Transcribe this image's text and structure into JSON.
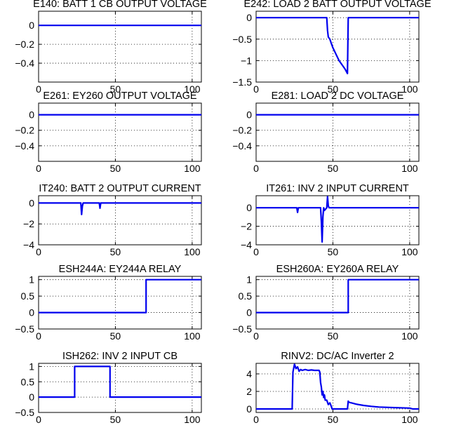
{
  "colors": {
    "series": "#0000ee",
    "axes": "#000000",
    "background": "#ffffff"
  },
  "chart_data": [
    {
      "type": "line",
      "title": "E140: BATT 1 CB OUTPUT VOLTAGE",
      "xlim": [
        0,
        106
      ],
      "ylim": [
        -0.6,
        0.15
      ],
      "xticks": [
        0,
        50,
        100
      ],
      "xtick_labels": [
        "0",
        "50",
        "100"
      ],
      "yticks": [
        0,
        -0.2,
        -0.4
      ],
      "ytick_labels": [
        "0",
        "−0.2",
        "−0.4"
      ],
      "grid": true,
      "x": [
        0,
        106
      ],
      "y": [
        0,
        0
      ]
    },
    {
      "type": "line",
      "title": "E242: LOAD 2 BATT OUTPUT VOLTAGE",
      "xlim": [
        0,
        106
      ],
      "ylim": [
        -1.5,
        0.15
      ],
      "xticks": [
        0,
        50,
        100
      ],
      "xtick_labels": [
        "0",
        "50",
        "100"
      ],
      "yticks": [
        0,
        -0.5,
        -1,
        -1.5
      ],
      "ytick_labels": [
        "0",
        "−0.5",
        "−1",
        "−1.5"
      ],
      "grid": true,
      "x": [
        0,
        46,
        46.5,
        47,
        48,
        49,
        50,
        52,
        54,
        56,
        58,
        59.5,
        60,
        106
      ],
      "y": [
        0,
        0,
        -0.3,
        -0.45,
        -0.5,
        -0.6,
        -0.7,
        -0.85,
        -1.0,
        -1.1,
        -1.2,
        -1.3,
        0,
        0
      ]
    },
    {
      "type": "line",
      "title": "E261: EY260 OUTPUT VOLTAGE",
      "xlim": [
        0,
        106
      ],
      "ylim": [
        -0.6,
        0.15
      ],
      "xticks": [
        0,
        50,
        100
      ],
      "xtick_labels": [
        "0",
        "50",
        "100"
      ],
      "yticks": [
        0,
        -0.2,
        -0.4
      ],
      "ytick_labels": [
        "0",
        "−0.2",
        "−0.4"
      ],
      "grid": true,
      "x": [
        0,
        106
      ],
      "y": [
        0,
        0
      ]
    },
    {
      "type": "line",
      "title": "E281: LOAD 2 DC VOLTAGE",
      "xlim": [
        0,
        106
      ],
      "ylim": [
        -0.6,
        0.15
      ],
      "xticks": [
        0,
        50,
        100
      ],
      "xtick_labels": [
        "0",
        "50",
        "100"
      ],
      "yticks": [
        0,
        -0.2,
        -0.4
      ],
      "ytick_labels": [
        "0",
        "−0.2",
        "−0.4"
      ],
      "grid": true,
      "x": [
        0,
        106
      ],
      "y": [
        0,
        0
      ]
    },
    {
      "type": "line",
      "title": "IT240: BATT 2 OUTPUT CURRENT",
      "xlim": [
        0,
        106
      ],
      "ylim": [
        -4,
        0.7
      ],
      "xticks": [
        0,
        50,
        100
      ],
      "xtick_labels": [
        "0",
        "50",
        "100"
      ],
      "yticks": [
        0,
        -2,
        -4
      ],
      "ytick_labels": [
        "0",
        "−2",
        "−4"
      ],
      "grid": true,
      "x": [
        0,
        27.5,
        28,
        28.5,
        29,
        39.5,
        40,
        40.5,
        106
      ],
      "y": [
        0,
        0,
        -1.1,
        -0.3,
        0,
        0,
        -0.5,
        0,
        0
      ]
    },
    {
      "type": "line",
      "title": "IT261: INV 2 INPUT CURRENT",
      "xlim": [
        0,
        106
      ],
      "ylim": [
        -4,
        1.3
      ],
      "xticks": [
        0,
        50,
        100
      ],
      "xtick_labels": [
        "0",
        "50",
        "100"
      ],
      "yticks": [
        0,
        -2,
        -4
      ],
      "ytick_labels": [
        "0",
        "−2",
        "−4"
      ],
      "grid": true,
      "x": [
        0,
        26.5,
        27,
        27.5,
        42,
        42.5,
        43,
        43.5,
        44,
        44.5,
        46,
        46.5,
        47,
        47.5,
        106
      ],
      "y": [
        0,
        0,
        -0.5,
        0,
        0,
        -1.5,
        -3.7,
        -1.0,
        0,
        -0.3,
        0,
        1.2,
        0.2,
        0,
        0
      ]
    },
    {
      "type": "line",
      "title": "ESH244A: EY244A RELAY",
      "xlim": [
        0,
        106
      ],
      "ylim": [
        -0.5,
        1.1
      ],
      "xticks": [
        0,
        50,
        100
      ],
      "xtick_labels": [
        "0",
        "50",
        "100"
      ],
      "yticks": [
        1,
        0.5,
        0,
        -0.5
      ],
      "ytick_labels": [
        "1",
        "0.5",
        "0",
        "−0.5"
      ],
      "grid": true,
      "x": [
        0,
        70,
        70,
        106
      ],
      "y": [
        0,
        0,
        1,
        1
      ]
    },
    {
      "type": "line",
      "title": "ESH260A: EY260A RELAY",
      "xlim": [
        0,
        106
      ],
      "ylim": [
        -0.5,
        1.1
      ],
      "xticks": [
        0,
        50,
        100
      ],
      "xtick_labels": [
        "0",
        "50",
        "100"
      ],
      "yticks": [
        1,
        0.5,
        0,
        -0.5
      ],
      "ytick_labels": [
        "1",
        "0.5",
        "0",
        "−0.5"
      ],
      "grid": true,
      "x": [
        0,
        60,
        60,
        106
      ],
      "y": [
        0,
        0,
        1,
        1
      ]
    },
    {
      "type": "line",
      "title": "ISH262: INV 2 INPUT CB",
      "xlim": [
        0,
        106
      ],
      "ylim": [
        -0.5,
        1.1
      ],
      "xticks": [
        0,
        50,
        100
      ],
      "xtick_labels": [
        "0",
        "50",
        "100"
      ],
      "yticks": [
        1,
        0.5,
        0,
        -0.5
      ],
      "ytick_labels": [
        "1",
        "0.5",
        "0",
        "−0.5"
      ],
      "grid": true,
      "x": [
        0,
        23.5,
        23.5,
        46.5,
        46.5,
        106
      ],
      "y": [
        0,
        0,
        1,
        1,
        0,
        0
      ]
    },
    {
      "type": "line",
      "title": "RINV2: DC/AC Inverter 2",
      "xlim": [
        0,
        106
      ],
      "ylim": [
        -0.4,
        5.2
      ],
      "xticks": [
        0,
        50,
        100
      ],
      "xtick_labels": [
        "0",
        "50",
        "100"
      ],
      "yticks": [
        4,
        2,
        0
      ],
      "ytick_labels": [
        "4",
        "2",
        "0"
      ],
      "grid": true,
      "x": [
        0,
        23.5,
        24,
        25,
        26,
        27,
        28,
        29,
        30,
        32,
        34,
        36,
        38,
        40,
        41,
        41.5,
        42,
        42.5,
        43,
        43.5,
        44,
        44.5,
        45,
        46,
        47,
        48,
        49,
        49.5,
        59.5,
        60,
        60.5,
        62,
        65,
        70,
        75,
        80,
        90,
        100,
        102,
        106
      ],
      "y": [
        0,
        0,
        4.2,
        5.1,
        4.6,
        4.8,
        4.3,
        4.5,
        4.4,
        4.5,
        4.4,
        4.45,
        4.4,
        4.4,
        4.4,
        4.2,
        3.0,
        2.5,
        1.6,
        2.0,
        1.3,
        1.6,
        1.0,
        1.0,
        0.5,
        0.7,
        0.3,
        0,
        0,
        0.9,
        0.75,
        0.7,
        0.55,
        0.4,
        0.3,
        0.22,
        0.15,
        0.1,
        0,
        0
      ]
    }
  ]
}
